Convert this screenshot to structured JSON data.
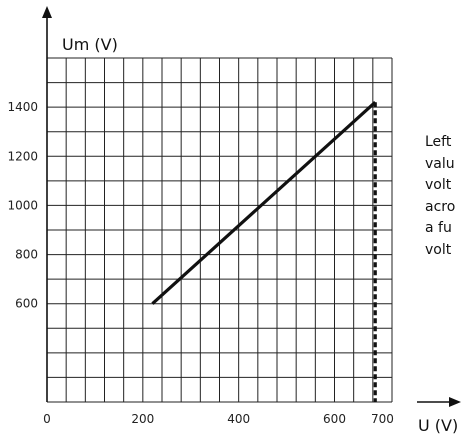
{
  "chart_data": {
    "type": "line",
    "title": "",
    "xlabel": "U (V)",
    "ylabel": "Um (V)",
    "xlim": [
      0,
      720
    ],
    "ylim": [
      200,
      1600
    ],
    "x_ticks": [
      {
        "value": 0,
        "label": "0"
      },
      {
        "value": 200,
        "label": "200"
      },
      {
        "value": 400,
        "label": "400"
      },
      {
        "value": 600,
        "label": "600"
      },
      {
        "value": 700,
        "label": "700"
      }
    ],
    "y_ticks": [
      {
        "value": 600,
        "label": "600"
      },
      {
        "value": 800,
        "label": "800"
      },
      {
        "value": 1000,
        "label": "1000"
      },
      {
        "value": 1200,
        "label": "1200"
      },
      {
        "value": 1400,
        "label": "1400"
      }
    ],
    "grid": true,
    "series": [
      {
        "x": [
          220,
          685
        ],
        "y": [
          600,
          1420
        ],
        "color": "#111111"
      }
    ],
    "reference_line": {
      "x": 685,
      "style": "dashed",
      "color": "#111111"
    }
  },
  "side_text": [
    "Left",
    "valu",
    "volt",
    "acro",
    "a fu",
    "volt"
  ]
}
